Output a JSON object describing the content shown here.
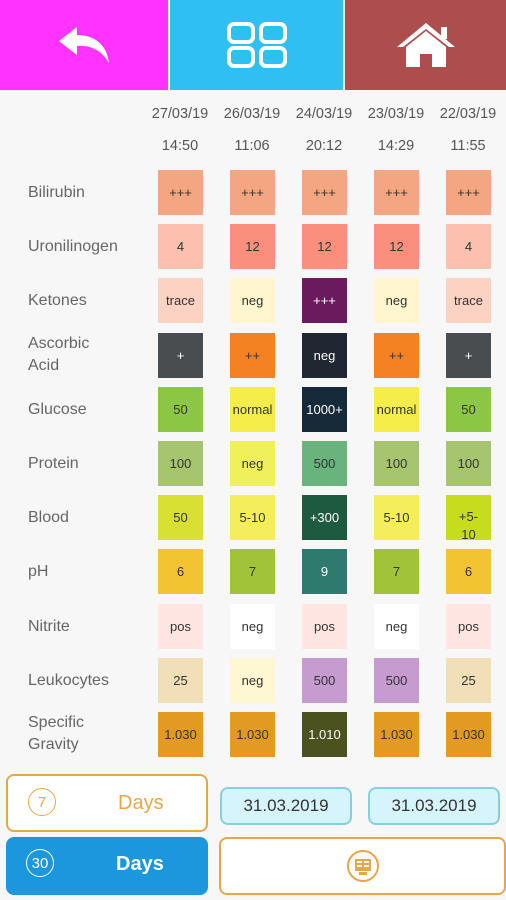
{
  "toolbar": {
    "back_color": "#ff33ff",
    "grid_color": "#2ec0f0",
    "home_color": "#ad4d4d",
    "back_icon": "undo-arrow-icon",
    "grid_icon": "grid-icon",
    "home_icon": "home-icon"
  },
  "columns": [
    {
      "date": "27/03/19",
      "time": "14:50"
    },
    {
      "date": "26/03/19",
      "time": "11:06"
    },
    {
      "date": "24/03/19",
      "time": "20:12"
    },
    {
      "date": "23/03/19",
      "time": "14:29"
    },
    {
      "date": "22/03/19",
      "time": "11:55"
    }
  ],
  "rows": [
    {
      "label": "Bilirubin",
      "cells": [
        {
          "text": "+++",
          "color": "#f4a582"
        },
        {
          "text": "+++",
          "color": "#f4a582"
        },
        {
          "text": "+++",
          "color": "#f4a582"
        },
        {
          "text": "+++",
          "color": "#f4a582"
        },
        {
          "text": "+++",
          "color": "#f4a582"
        }
      ]
    },
    {
      "label": "Uronilinogen",
      "cells": [
        {
          "text": "4",
          "color": "#fcc0ae"
        },
        {
          "text": "12",
          "color": "#fb8f7e"
        },
        {
          "text": "12",
          "color": "#fb8f7e"
        },
        {
          "text": "12",
          "color": "#fb8f7e"
        },
        {
          "text": "4",
          "color": "#fcc0ae"
        }
      ]
    },
    {
      "label": "Ketones",
      "cells": [
        {
          "text": "trace",
          "color": "#fcd2c2"
        },
        {
          "text": "neg",
          "color": "#fff6d0"
        },
        {
          "text": "+++",
          "color": "#6b1a5e"
        },
        {
          "text": "neg",
          "color": "#fff6d0"
        },
        {
          "text": "trace",
          "color": "#fcd2c2"
        }
      ]
    },
    {
      "label": "Ascorbic\nAcid",
      "cells": [
        {
          "text": "+",
          "color": "#4a4d4f"
        },
        {
          "text": "++",
          "color": "#f58220"
        },
        {
          "text": "neg",
          "color": "#1e2732"
        },
        {
          "text": "++",
          "color": "#f58220"
        },
        {
          "text": "+",
          "color": "#4a4d4f"
        }
      ]
    },
    {
      "label": "Glucose",
      "cells": [
        {
          "text": "50",
          "color": "#8cc645"
        },
        {
          "text": "normal",
          "color": "#f5ee4a"
        },
        {
          "text": "1000+",
          "color": "#172a3a"
        },
        {
          "text": "normal",
          "color": "#f5ee4a"
        },
        {
          "text": "50",
          "color": "#8cc645"
        }
      ]
    },
    {
      "label": "Protein",
      "cells": [
        {
          "text": "100",
          "color": "#a6c56e"
        },
        {
          "text": "neg",
          "color": "#f0f05a"
        },
        {
          "text": "500",
          "color": "#68b47c"
        },
        {
          "text": "100",
          "color": "#a6c56e"
        },
        {
          "text": "100",
          "color": "#a6c56e"
        }
      ]
    },
    {
      "label": "Blood",
      "cells": [
        {
          "text": "50",
          "color": "#d8e034"
        },
        {
          "text": "5-10",
          "color": "#f4ee5c"
        },
        {
          "text": "+300",
          "color": "#1d5a40"
        },
        {
          "text": "5-10",
          "color": "#f4ee5c"
        },
        {
          "text": "+5-\n10",
          "color": "#c7dc1c"
        }
      ]
    },
    {
      "label": "pH",
      "cells": [
        {
          "text": "6",
          "color": "#f2c431"
        },
        {
          "text": "7",
          "color": "#a1c33a"
        },
        {
          "text": "9",
          "color": "#2f7a6e"
        },
        {
          "text": "7",
          "color": "#a1c33a"
        },
        {
          "text": "6",
          "color": "#f2c431"
        }
      ]
    },
    {
      "label": "Nitrite",
      "cells": [
        {
          "text": "pos",
          "color": "#ffe6e2"
        },
        {
          "text": "neg",
          "color": "#ffffff"
        },
        {
          "text": "pos",
          "color": "#ffe6e2"
        },
        {
          "text": "neg",
          "color": "#ffffff"
        },
        {
          "text": "pos",
          "color": "#ffe6e2"
        }
      ]
    },
    {
      "label": "Leukocytes",
      "cells": [
        {
          "text": "25",
          "color": "#f0dfb7"
        },
        {
          "text": "neg",
          "color": "#fff6d2"
        },
        {
          "text": "500",
          "color": "#c59bd0"
        },
        {
          "text": "500",
          "color": "#c59bd0"
        },
        {
          "text": "25",
          "color": "#f0dfb7"
        }
      ]
    },
    {
      "label": "Specific\nGravity",
      "cells": [
        {
          "text": "1.030",
          "color": "#e39a22"
        },
        {
          "text": "1.030",
          "color": "#e39a22"
        },
        {
          "text": "1.010",
          "color": "#4c5120"
        },
        {
          "text": "1.030",
          "color": "#e39a22"
        },
        {
          "text": "1.030",
          "color": "#e39a22"
        }
      ]
    }
  ],
  "controls": {
    "btn7_number": "7",
    "btn7_label": "Days",
    "btn30_number": "30",
    "btn30_label": "Days",
    "date_from": "31.03.2019",
    "date_to": "31.03.2019",
    "accent": "#e8a64b",
    "active": "#1b97de",
    "action_icon": "report-icon"
  }
}
